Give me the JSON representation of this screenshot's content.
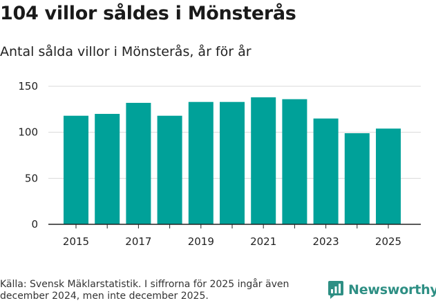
{
  "header": {
    "title": "104 villor såldes i Mönsterås",
    "subtitle": "Antal sålda villor i Mönsterås, år för år"
  },
  "chart_data": {
    "type": "bar",
    "title": "104 villor såldes i Mönsterås",
    "subtitle": "Antal sålda villor i Mönsterås, år för år",
    "categories": [
      "2015",
      "2016",
      "2017",
      "2018",
      "2019",
      "2020",
      "2021",
      "2022",
      "2023",
      "2024",
      "2025"
    ],
    "values": [
      118,
      120,
      132,
      118,
      133,
      133,
      138,
      136,
      115,
      99,
      104
    ],
    "xtick_labels": [
      "2015",
      "2017",
      "2019",
      "2021",
      "2023",
      "2025"
    ],
    "yticks": [
      0,
      50,
      100,
      150
    ],
    "ylim": [
      0,
      150
    ],
    "xlabel": "",
    "ylabel": "",
    "grid": "horizontal",
    "bar_color": "#00a199"
  },
  "footer": {
    "source": "Källa: Svensk Mäklarstatistik. I siffrorna för 2025 ingår även december 2024, men inte december 2025.",
    "brand": "Newsworthy",
    "brand_color": "#2e8f84"
  }
}
